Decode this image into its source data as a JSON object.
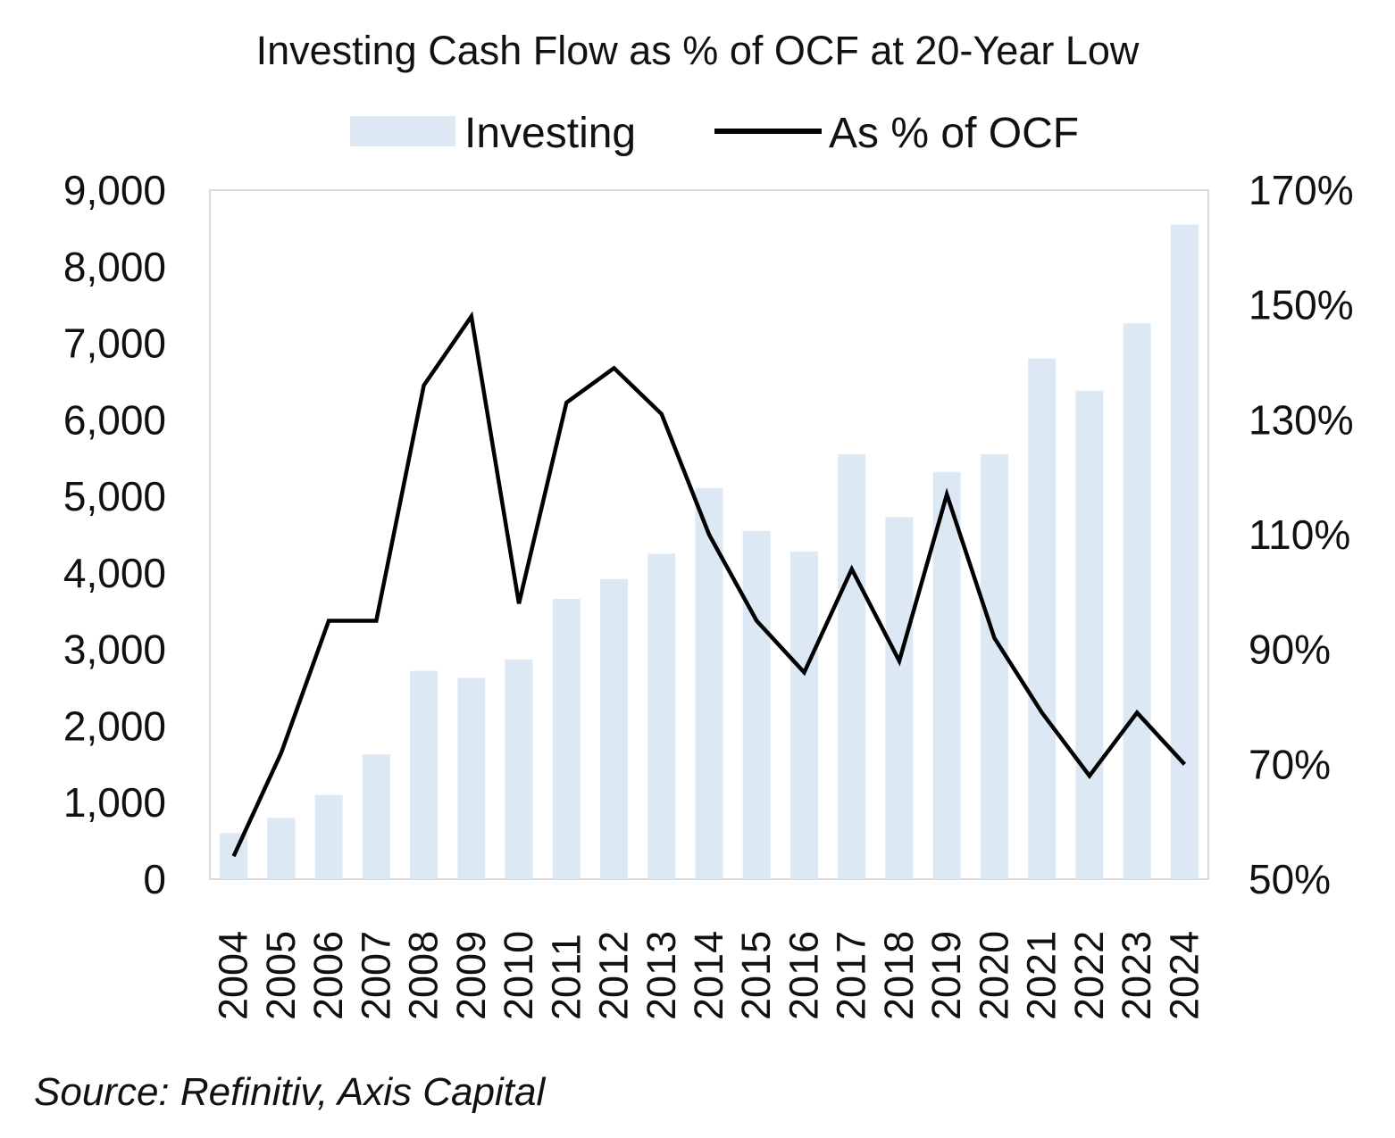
{
  "chart_data": {
    "type": "bar+line",
    "title": "Investing Cash Flow as % of OCF at 20-Year Low",
    "categories": [
      "2004",
      "2005",
      "2006",
      "2007",
      "2008",
      "2009",
      "2010",
      "2011",
      "2012",
      "2013",
      "2014",
      "2015",
      "2016",
      "2017",
      "2018",
      "2019",
      "2020",
      "2021",
      "2022",
      "2023",
      "2024"
    ],
    "series": [
      {
        "name": "Investing",
        "type": "bar",
        "axis": "left",
        "color": "#dde8f5",
        "values": [
          600,
          800,
          1100,
          1630,
          2720,
          2630,
          2870,
          3660,
          3920,
          4250,
          5110,
          4550,
          4280,
          5550,
          4730,
          5320,
          5550,
          6800,
          6380,
          7260,
          8550
        ]
      },
      {
        "name": "As % of OCF",
        "type": "line",
        "axis": "right",
        "color": "#000000",
        "values": [
          54,
          72,
          95,
          95,
          136,
          148,
          98,
          133,
          139,
          131,
          110,
          95,
          86,
          104,
          88,
          117,
          92,
          79,
          68,
          79,
          70
        ]
      }
    ],
    "y_left": {
      "min": 0,
      "max": 9000,
      "ticks": [
        "0",
        "1,000",
        "2,000",
        "3,000",
        "4,000",
        "5,000",
        "6,000",
        "7,000",
        "8,000",
        "9,000"
      ]
    },
    "y_right": {
      "min": 50,
      "max": 170,
      "ticks": [
        "50%",
        "70%",
        "90%",
        "110%",
        "130%",
        "150%",
        "170%"
      ]
    },
    "legend": "top",
    "grid": false,
    "source": "Source: Refinitiv, Axis Capital"
  }
}
